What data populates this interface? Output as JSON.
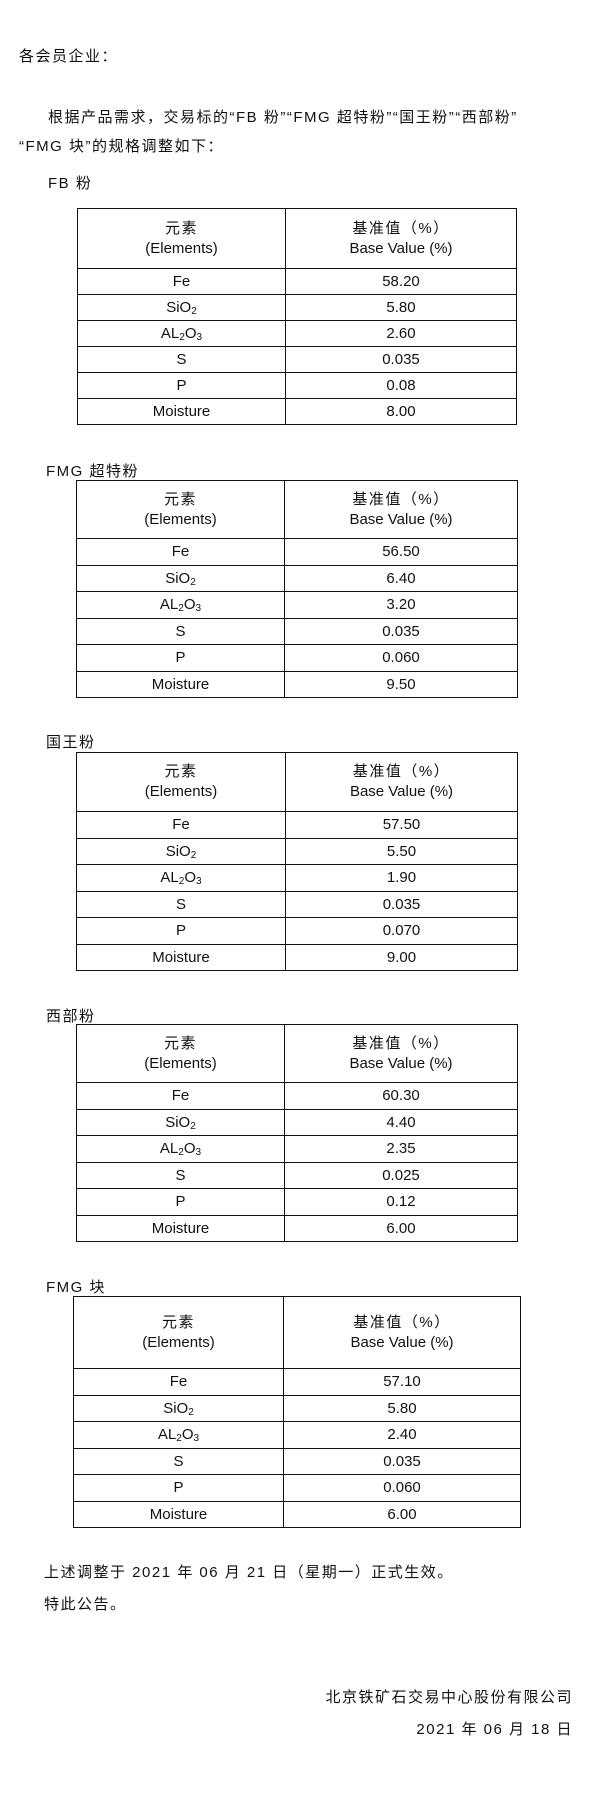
{
  "greeting": "各会员企业：",
  "intro_line1": "根据产品需求，交易标的“FB 粉”“FMG 超特粉”“国王粉”“西部粉”",
  "intro_line2": "“FMG 块”的规格调整如下：",
  "table_header": {
    "col1_cn": "元素",
    "col1_en": "(Elements)",
    "col2_cn": "基准值（%）",
    "col2_en": "Base Value (%)"
  },
  "tables": [
    {
      "title": "FB 粉",
      "rows": [
        {
          "element": "Fe",
          "value": "58.20"
        },
        {
          "element": "SiO",
          "sub": "2",
          "value": "5.80"
        },
        {
          "element": "AL",
          "sub": "2",
          "tail": "O",
          "sub2": "3",
          "value": "2.60"
        },
        {
          "element": "S",
          "value": "0.035"
        },
        {
          "element": "P",
          "value": "0.08"
        },
        {
          "element": "Moisture",
          "value": "8.00"
        }
      ]
    },
    {
      "title": "FMG 超特粉",
      "rows": [
        {
          "element": "Fe",
          "value": "56.50"
        },
        {
          "element": "SiO",
          "sub": "2",
          "value": "6.40"
        },
        {
          "element": "AL",
          "sub": "2",
          "tail": "O",
          "sub2": "3",
          "value": "3.20"
        },
        {
          "element": "S",
          "value": "0.035"
        },
        {
          "element": "P",
          "value": "0.060"
        },
        {
          "element": "Moisture",
          "value": "9.50"
        }
      ]
    },
    {
      "title": "国王粉",
      "rows": [
        {
          "element": "Fe",
          "value": "57.50"
        },
        {
          "element": "SiO",
          "sub": "2",
          "value": "5.50"
        },
        {
          "element": "AL",
          "sub": "2",
          "tail": "O",
          "sub2": "3",
          "value": "1.90"
        },
        {
          "element": "S",
          "value": "0.035"
        },
        {
          "element": "P",
          "value": "0.070"
        },
        {
          "element": "Moisture",
          "value": "9.00"
        }
      ]
    },
    {
      "title": "西部粉",
      "rows": [
        {
          "element": "Fe",
          "value": "60.30"
        },
        {
          "element": "SiO",
          "sub": "2",
          "value": "4.40"
        },
        {
          "element": "AL",
          "sub": "2",
          "tail": "O",
          "sub2": "3",
          "value": "2.35"
        },
        {
          "element": "S",
          "value": "0.025"
        },
        {
          "element": "P",
          "value": "0.12"
        },
        {
          "element": "Moisture",
          "value": "6.00"
        }
      ]
    },
    {
      "title": "FMG 块",
      "rows": [
        {
          "element": "Fe",
          "value": "57.10"
        },
        {
          "element": "SiO",
          "sub": "2",
          "value": "5.80"
        },
        {
          "element": "AL",
          "sub": "2",
          "tail": "O",
          "sub2": "3",
          "value": "2.40"
        },
        {
          "element": "S",
          "value": "0.035"
        },
        {
          "element": "P",
          "value": "0.060"
        },
        {
          "element": "Moisture",
          "value": "6.00"
        }
      ]
    }
  ],
  "effective_note": "上述调整于 2021 年 06 月 21 日（星期一）正式生效。",
  "closing": "特此公告。",
  "signature": {
    "company": "北京铁矿石交易中心股份有限公司",
    "date": "2021 年 06 月 18 日"
  }
}
